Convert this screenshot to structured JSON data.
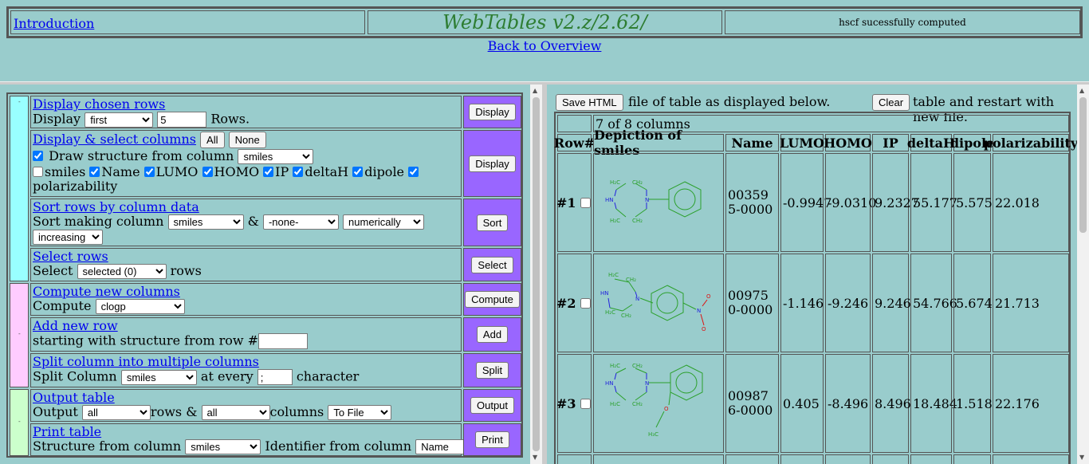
{
  "header": {
    "intro_link": "Introduction",
    "title": "WebTables v2.z/2.62/",
    "status": "hscf sucessfully computed",
    "back_link": "Back to Overview"
  },
  "controls": {
    "display_rows": {
      "link": "Display chosen rows",
      "label": "Display",
      "mode": "first",
      "count": "5",
      "suffix": "Rows.",
      "button": "Display"
    },
    "display_columns": {
      "link": "Display & select columns",
      "all_button": "All",
      "none_button": "None",
      "draw_label": "Draw structure from column",
      "draw_column": "smiles",
      "columns": [
        {
          "name": "smiles",
          "checked": false
        },
        {
          "name": "Name",
          "checked": true
        },
        {
          "name": "LUMO",
          "checked": true
        },
        {
          "name": "HOMO",
          "checked": true
        },
        {
          "name": "IP",
          "checked": true
        },
        {
          "name": "deltaH",
          "checked": true
        },
        {
          "name": "dipole",
          "checked": true
        },
        {
          "name": "polarizability",
          "checked": true
        }
      ],
      "button": "Display"
    },
    "sort": {
      "link": "Sort rows by column data",
      "label": "Sort making column",
      "column": "smiles",
      "amp": "&",
      "second": "-none-",
      "method": "numerically",
      "order": "increasing",
      "button": "Sort"
    },
    "select": {
      "link": "Select rows",
      "label": "Select",
      "value": "selected (0)",
      "suffix": "rows",
      "button": "Select"
    },
    "compute": {
      "link": "Compute new columns",
      "label": "Compute",
      "value": "clogp",
      "button": "Compute"
    },
    "add_row": {
      "link": "Add new row",
      "label": "starting with structure from row #",
      "value": "",
      "button": "Add"
    },
    "split": {
      "link": "Split column into multiple columns",
      "label": "Split Column",
      "column": "smiles",
      "at_every": "at every",
      "char": ";",
      "suffix": "character",
      "button": "Split"
    },
    "output": {
      "link": "Output table",
      "label": "Output",
      "rows": "all",
      "rows_label": "rows &",
      "cols": "all",
      "cols_label": "columns",
      "dest": "To File",
      "button": "Output"
    },
    "print": {
      "link": "Print table",
      "label": "Structure from column",
      "column": "smiles",
      "id_label": "Identifier from column",
      "id_column": "Name",
      "button": "Print"
    }
  },
  "right": {
    "save_button": "Save HTML",
    "save_text": "file of table as displayed below.",
    "clear_button": "Clear",
    "clear_text": "table and restart with new file."
  },
  "table": {
    "caption": "7 of 8 columns",
    "headers": [
      "Row#",
      "Depiction of smiles",
      "Name",
      "LUMO",
      "HOMO",
      "IP",
      "deltaH",
      "dipole",
      "polarizability"
    ],
    "rows": [
      {
        "row": "#1",
        "name": "003595-0000",
        "lumo": "-0.9947",
        "homo": "-9.0310",
        "ip": "9.2327",
        "deltah": "55.177",
        "dipole": "5.575",
        "polar": "22.018"
      },
      {
        "row": "#2",
        "name": "009750-0000",
        "lumo": "-1.146",
        "homo": "-9.246",
        "ip": "9.246",
        "deltah": "54.766",
        "dipole": "5.674",
        "polar": "21.713"
      },
      {
        "row": "#3",
        "name": "009876-0000",
        "lumo": "0.405",
        "homo": "-8.496",
        "ip": "8.496",
        "deltah": "18.484",
        "dipole": "1.518",
        "polar": "22.176"
      }
    ]
  },
  "mol_labels": {
    "h2c": "H₂C",
    "ch2": "CH₂",
    "hn": "HN",
    "n": "N",
    "o": "O",
    "h3c": "H₃C"
  },
  "colors": {
    "background": "#99cccc",
    "title": "#2e7d32",
    "button_cell": "#9966ff",
    "band_1": "#99ffff",
    "band_2": "#ffccff",
    "band_3": "#ccffcc",
    "bond": "#2ba02b",
    "nitrogen": "#2222dd",
    "oxygen": "#dd1111"
  }
}
